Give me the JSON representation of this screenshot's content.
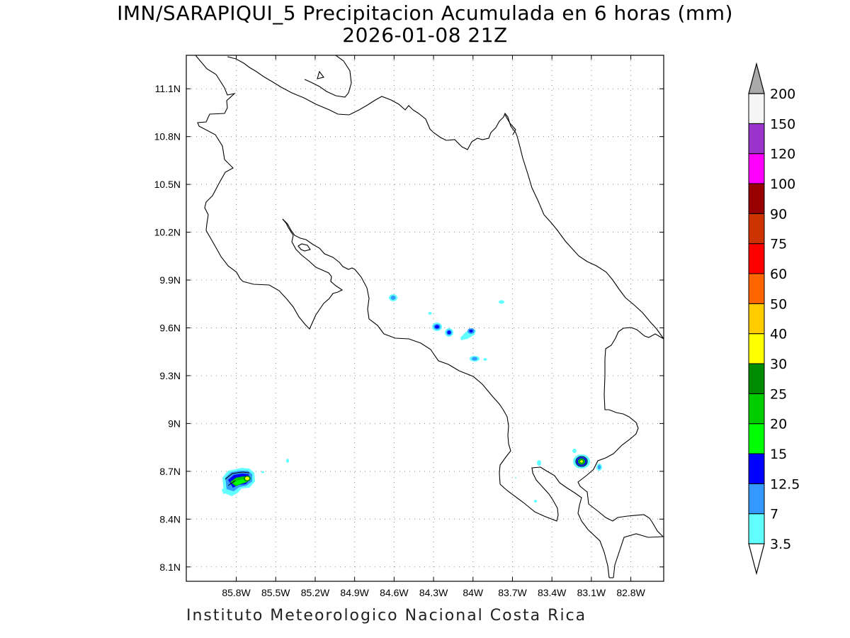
{
  "title_line1": "IMN/SARAPIQUI_5 Precipitacion Acumulada en 6 horas (mm)",
  "title_line2": "2026-01-08 21Z",
  "footer": "Instituto Meteorologico Nacional Costa Rica",
  "axes": {
    "lon_range": [
      -86.18,
      -82.55
    ],
    "lat_range": [
      8.01,
      11.31
    ],
    "x_ticks": [
      {
        "value": -85.8,
        "label": "85.8W"
      },
      {
        "value": -85.5,
        "label": "85.5W"
      },
      {
        "value": -85.2,
        "label": "85.2W"
      },
      {
        "value": -84.9,
        "label": "84.9W"
      },
      {
        "value": -84.6,
        "label": "84.6W"
      },
      {
        "value": -84.3,
        "label": "84.3W"
      },
      {
        "value": -84.0,
        "label": "84W"
      },
      {
        "value": -83.7,
        "label": "83.7W"
      },
      {
        "value": -83.4,
        "label": "83.4W"
      },
      {
        "value": -83.1,
        "label": "83.1W"
      },
      {
        "value": -82.8,
        "label": "82.8W"
      }
    ],
    "y_ticks": [
      {
        "value": 8.1,
        "label": "8.1N"
      },
      {
        "value": 8.4,
        "label": "8.4N"
      },
      {
        "value": 8.7,
        "label": "8.7N"
      },
      {
        "value": 9.0,
        "label": "9N"
      },
      {
        "value": 9.3,
        "label": "9.3N"
      },
      {
        "value": 9.6,
        "label": "9.6N"
      },
      {
        "value": 9.9,
        "label": "9.9N"
      },
      {
        "value": 10.2,
        "label": "10.2N"
      },
      {
        "value": 10.5,
        "label": "10.5N"
      },
      {
        "value": 10.8,
        "label": "10.8N"
      },
      {
        "value": 11.1,
        "label": "11.1N"
      }
    ],
    "grid": "dotted"
  },
  "colorbar": {
    "levels": [
      {
        "label": "3.5",
        "color": "#62ffff"
      },
      {
        "label": "7",
        "color": "#3399ff"
      },
      {
        "label": "12.5",
        "color": "#0000ff"
      },
      {
        "label": "15",
        "color": "#00ff00"
      },
      {
        "label": "20",
        "color": "#00cc00"
      },
      {
        "label": "25",
        "color": "#008c00"
      },
      {
        "label": "30",
        "color": "#ffff00"
      },
      {
        "label": "40",
        "color": "#ffcc00"
      },
      {
        "label": "50",
        "color": "#ff6600"
      },
      {
        "label": "60",
        "color": "#ff0000"
      },
      {
        "label": "75",
        "color": "#cc3300"
      },
      {
        "label": "90",
        "color": "#990000"
      },
      {
        "label": "100",
        "color": "#ff00ff"
      },
      {
        "label": "120",
        "color": "#9933cc"
      },
      {
        "label": "150",
        "color": "#f5f5f5"
      },
      {
        "label": "200",
        "color": "#aaaaaa"
      }
    ],
    "below_min_color": "#ffffff"
  },
  "precipitation_areas": [
    {
      "name": "nicoya-peninsula",
      "lon": -85.6,
      "lat": 8.63,
      "max_category": "30"
    },
    {
      "name": "caribbean-south",
      "lon": -83.09,
      "lat": 8.76,
      "max_category": "30"
    },
    {
      "name": "central-valley-1",
      "lon": -84.15,
      "lat": 9.6,
      "max_category": "12.5"
    },
    {
      "name": "central-valley-2",
      "lon": -84.07,
      "lat": 9.56,
      "max_category": "12.5"
    },
    {
      "name": "central-valley-3",
      "lon": -83.93,
      "lat": 9.57,
      "max_category": "12.5"
    },
    {
      "name": "central-valley-4",
      "lon": -84.47,
      "lat": 9.78,
      "max_category": "7"
    },
    {
      "name": "central-valley-5",
      "lon": -83.9,
      "lat": 9.4,
      "max_category": "7"
    }
  ]
}
